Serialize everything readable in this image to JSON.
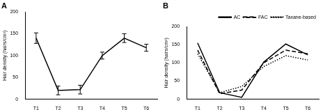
{
  "chart_data": [
    {
      "type": "line",
      "title": "A",
      "categories": [
        "T1",
        "T2",
        "T3",
        "T4",
        "T5",
        "T6"
      ],
      "y_label": "Hair density (hairs/cm²)",
      "values": [
        140,
        20,
        22,
        100,
        140,
        118
      ],
      "errors": [
        12,
        10,
        10,
        8,
        10,
        8
      ],
      "color": "#000000",
      "ylim": [
        0,
        200
      ],
      "yticks": [
        0,
        50,
        100,
        150,
        200
      ],
      "grid": false
    },
    {
      "type": "line",
      "title": "B",
      "categories": [
        "T1",
        "T2",
        "T3",
        "T4",
        "T5",
        "T6"
      ],
      "y_label": "Hair density (hairs/cm²)",
      "series": [
        {
          "name": "AC",
          "color": "#000000",
          "line_style": "solid",
          "values": [
            155,
            18,
            5,
            102,
            152,
            122
          ]
        },
        {
          "name": "FAC",
          "color": "#000000",
          "line_style": "dashed",
          "values": [
            135,
            15,
            25,
            100,
            135,
            125
          ]
        },
        {
          "name": "Taxane-based",
          "color": "#000000",
          "line_style": "dotted",
          "values": [
            125,
            18,
            35,
            90,
            120,
            108
          ]
        }
      ],
      "legend": "upper right",
      "ylim": [
        0,
        200
      ],
      "yticks": [
        0,
        50,
        100,
        150,
        200
      ],
      "grid": false
    }
  ]
}
